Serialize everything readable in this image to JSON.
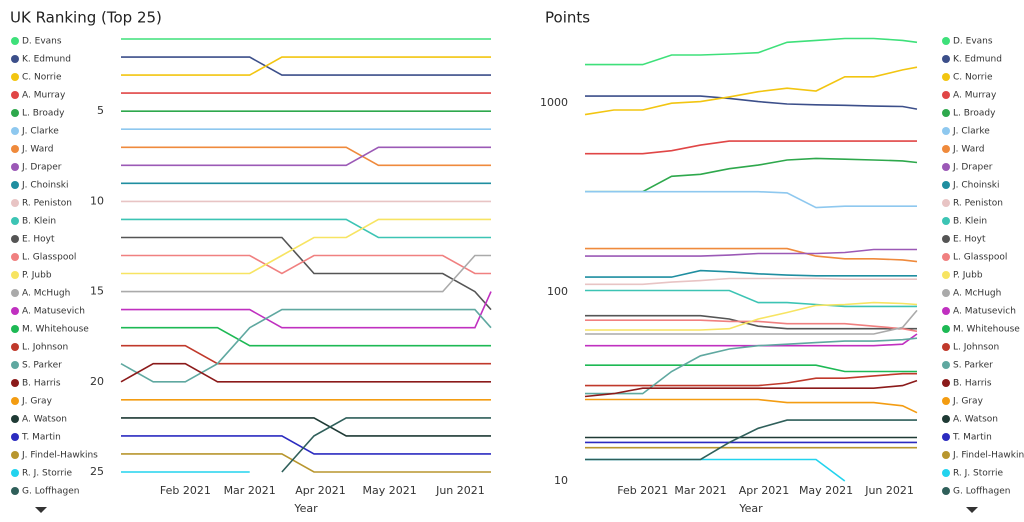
{
  "chart_data": [
    {
      "type": "line",
      "title": "UK Ranking (Top 25)",
      "x_label": "Year",
      "legend": "left",
      "log": false,
      "grid": false,
      "x": [
        0,
        2,
        4,
        6,
        8,
        10,
        12,
        14,
        16,
        18,
        20,
        22,
        23
      ],
      "xlim": [
        0,
        23
      ],
      "xticks": [
        {
          "value": 4,
          "label": "Feb 2021"
        },
        {
          "value": 8,
          "label": "Mar 2021"
        },
        {
          "value": 12.4,
          "label": "Apr 2021"
        },
        {
          "value": 16.7,
          "label": "May 2021"
        },
        {
          "value": 21.1,
          "label": "Jun 2021"
        }
      ],
      "ylim": [
        25.5,
        0.5
      ],
      "yticks": [
        5,
        10,
        15,
        20,
        25
      ],
      "series": [
        {
          "name": "D. Evans",
          "color": "#3ee07a",
          "values": [
            1,
            1,
            1,
            1,
            1,
            1,
            1,
            1,
            1,
            1,
            1,
            1,
            1
          ]
        },
        {
          "name": "K. Edmund",
          "color": "#3c4f8a",
          "values": [
            2,
            2,
            2,
            2,
            2,
            3,
            3,
            3,
            3,
            3,
            3,
            3,
            3
          ]
        },
        {
          "name": "C. Norrie",
          "color": "#f2c511",
          "values": [
            3,
            3,
            3,
            3,
            3,
            2,
            2,
            2,
            2,
            2,
            2,
            2,
            2
          ]
        },
        {
          "name": "A. Murray",
          "color": "#e04646",
          "values": [
            4,
            4,
            4,
            4,
            4,
            4,
            4,
            4,
            4,
            4,
            4,
            4,
            4
          ]
        },
        {
          "name": "L. Broady",
          "color": "#2ea84c",
          "values": [
            5,
            5,
            5,
            5,
            5,
            5,
            5,
            5,
            5,
            5,
            5,
            5,
            5
          ]
        },
        {
          "name": "J. Clarke",
          "color": "#8ec8ef",
          "values": [
            6,
            6,
            6,
            6,
            6,
            6,
            6,
            6,
            6,
            6,
            6,
            6,
            6
          ]
        },
        {
          "name": "J. Ward",
          "color": "#ef8a3c",
          "values": [
            7,
            7,
            7,
            7,
            7,
            7,
            7,
            7,
            8,
            8,
            8,
            8,
            8
          ]
        },
        {
          "name": "J. Draper",
          "color": "#9b59b6",
          "values": [
            8,
            8,
            8,
            8,
            8,
            8,
            8,
            8,
            7,
            7,
            7,
            7,
            7
          ]
        },
        {
          "name": "J. Choinski",
          "color": "#1f8ea0",
          "values": [
            9,
            9,
            9,
            9,
            9,
            9,
            9,
            9,
            9,
            9,
            9,
            9,
            9
          ]
        },
        {
          "name": "R. Peniston",
          "color": "#e8c4c4",
          "values": [
            10,
            10,
            10,
            10,
            10,
            10,
            10,
            10,
            10,
            10,
            10,
            10,
            10
          ]
        },
        {
          "name": "B. Klein",
          "color": "#3cc4b4",
          "values": [
            11,
            11,
            11,
            11,
            11,
            11,
            11,
            11,
            12,
            12,
            12,
            12,
            12
          ]
        },
        {
          "name": "E. Hoyt",
          "color": "#555555",
          "values": [
            12,
            12,
            12,
            12,
            12,
            12,
            14,
            14,
            14,
            14,
            14,
            15,
            16
          ]
        },
        {
          "name": "L. Glasspool",
          "color": "#f08080",
          "values": [
            13,
            13,
            13,
            13,
            13,
            14,
            13,
            13,
            13,
            13,
            13,
            14,
            14
          ]
        },
        {
          "name": "P. Jubb",
          "color": "#f7e462",
          "values": [
            14,
            14,
            14,
            14,
            14,
            13,
            12,
            12,
            11,
            11,
            11,
            11,
            11
          ]
        },
        {
          "name": "A. McHugh",
          "color": "#aaaaaa",
          "values": [
            15,
            15,
            15,
            15,
            15,
            15,
            15,
            15,
            15,
            15,
            15,
            13,
            13
          ]
        },
        {
          "name": "A. Matusevich",
          "color": "#c030c0",
          "values": [
            16,
            16,
            16,
            16,
            16,
            17,
            17,
            17,
            17,
            17,
            17,
            17,
            15
          ]
        },
        {
          "name": "M. Whitehouse",
          "color": "#1db954",
          "values": [
            17,
            17,
            17,
            17,
            18,
            18,
            18,
            18,
            18,
            18,
            18,
            18,
            18
          ]
        },
        {
          "name": "L. Johnson",
          "color": "#c0392b",
          "values": [
            18,
            18,
            18,
            19,
            19,
            19,
            19,
            19,
            19,
            19,
            19,
            19,
            19
          ]
        },
        {
          "name": "S. Parker",
          "color": "#5fa8a0",
          "values": [
            19,
            20,
            20,
            19,
            17,
            16,
            16,
            16,
            16,
            16,
            16,
            16,
            17
          ]
        },
        {
          "name": "B. Harris",
          "color": "#8b1a1a",
          "values": [
            20,
            19,
            19,
            20,
            20,
            20,
            20,
            20,
            20,
            20,
            20,
            20,
            20
          ]
        },
        {
          "name": "J. Gray",
          "color": "#f39c12",
          "values": [
            21,
            21,
            21,
            21,
            21,
            21,
            21,
            21,
            21,
            21,
            21,
            21,
            21
          ]
        },
        {
          "name": "A. Watson",
          "color": "#1f3a35",
          "values": [
            22,
            22,
            22,
            22,
            22,
            22,
            22,
            23,
            23,
            23,
            23,
            23,
            23
          ]
        },
        {
          "name": "T. Martin",
          "color": "#2c2cc0",
          "values": [
            23,
            23,
            23,
            23,
            23,
            23,
            24,
            24,
            24,
            24,
            24,
            24,
            24
          ]
        },
        {
          "name": "J. Findel-Hawkins",
          "color": "#b8962e",
          "values": [
            24,
            24,
            24,
            24,
            24,
            24,
            25,
            25,
            25,
            25,
            25,
            25,
            25
          ]
        },
        {
          "name": "R. J. Storrie",
          "color": "#22d3ee",
          "values": [
            25,
            25,
            25,
            25,
            25,
            null,
            null,
            null,
            null,
            null,
            null,
            null,
            null
          ]
        },
        {
          "name": "G. Loffhagen",
          "color": "#2f5f5a",
          "values": [
            null,
            null,
            null,
            null,
            null,
            25,
            23,
            22,
            22,
            22,
            22,
            22,
            22
          ]
        }
      ]
    },
    {
      "type": "line",
      "title": "Points",
      "x_label": "Year",
      "legend": "right",
      "log": true,
      "grid": false,
      "x": [
        0,
        2,
        4,
        6,
        8,
        10,
        12,
        14,
        16,
        18,
        20,
        22,
        23
      ],
      "xlim": [
        0,
        23
      ],
      "xticks": [
        {
          "value": 4,
          "label": "Feb 2021"
        },
        {
          "value": 8,
          "label": "Mar 2021"
        },
        {
          "value": 12.4,
          "label": "Apr 2021"
        },
        {
          "value": 16.7,
          "label": "May 2021"
        },
        {
          "value": 21.1,
          "label": "Jun 2021"
        }
      ],
      "ylim": [
        10,
        2500
      ],
      "yticks": [
        10,
        100,
        1000
      ],
      "series": [
        {
          "name": "D. Evans",
          "color": "#3ee07a",
          "values": [
            1600,
            1600,
            1600,
            1800,
            1800,
            1820,
            1850,
            2100,
            2150,
            2200,
            2200,
            2150,
            2100
          ]
        },
        {
          "name": "K. Edmund",
          "color": "#3c4f8a",
          "values": [
            1090,
            1090,
            1090,
            1090,
            1090,
            1060,
            1020,
            990,
            980,
            975,
            965,
            960,
            930
          ]
        },
        {
          "name": "C. Norrie",
          "color": "#f2c511",
          "values": [
            870,
            920,
            920,
            1000,
            1020,
            1080,
            1150,
            1200,
            1160,
            1380,
            1380,
            1500,
            1550
          ]
        },
        {
          "name": "A. Murray",
          "color": "#e04646",
          "values": [
            540,
            540,
            540,
            560,
            600,
            630,
            630,
            630,
            630,
            630,
            630,
            630,
            630
          ]
        },
        {
          "name": "L. Broady",
          "color": "#2ea84c",
          "values": [
            340,
            340,
            340,
            410,
            420,
            450,
            470,
            500,
            510,
            505,
            500,
            495,
            485
          ]
        },
        {
          "name": "J. Clarke",
          "color": "#8ec8ef",
          "values": [
            340,
            340,
            340,
            340,
            340,
            340,
            340,
            335,
            280,
            285,
            285,
            285,
            285
          ]
        },
        {
          "name": "J. Ward",
          "color": "#ef8a3c",
          "values": [
            170,
            170,
            170,
            170,
            170,
            170,
            170,
            170,
            155,
            150,
            150,
            148,
            145
          ]
        },
        {
          "name": "J. Draper",
          "color": "#9b59b6",
          "values": [
            155,
            155,
            155,
            155,
            155,
            157,
            160,
            160,
            160,
            162,
            168,
            168,
            168
          ]
        },
        {
          "name": "J. Choinski",
          "color": "#1f8ea0",
          "values": [
            120,
            120,
            120,
            120,
            130,
            128,
            125,
            123,
            122,
            122,
            122,
            122,
            122
          ]
        },
        {
          "name": "R. Peniston",
          "color": "#e8c4c4",
          "values": [
            110,
            110,
            110,
            113,
            115,
            118,
            118,
            118,
            118,
            117,
            117,
            117,
            117
          ]
        },
        {
          "name": "B. Klein",
          "color": "#3cc4b4",
          "values": [
            102,
            102,
            102,
            102,
            102,
            102,
            88,
            88,
            86,
            84,
            84,
            84,
            84
          ]
        },
        {
          "name": "E. Hoyt",
          "color": "#555555",
          "values": [
            75,
            75,
            75,
            75,
            75,
            72,
            66,
            64,
            64,
            64,
            64,
            64,
            64
          ]
        },
        {
          "name": "L. Glasspool",
          "color": "#f08080",
          "values": [
            71,
            71,
            71,
            71,
            71,
            70,
            70,
            68,
            68,
            68,
            66,
            64,
            62
          ]
        },
        {
          "name": "P. Jubb",
          "color": "#f7e462",
          "values": [
            63,
            63,
            63,
            63,
            63,
            64,
            72,
            78,
            85,
            86,
            88,
            87,
            86
          ]
        },
        {
          "name": "A. McHugh",
          "color": "#aaaaaa",
          "values": [
            60,
            60,
            60,
            60,
            60,
            60,
            60,
            60,
            60,
            60,
            60,
            65,
            80
          ]
        },
        {
          "name": "A. Matusevich",
          "color": "#c030c0",
          "values": [
            52,
            52,
            52,
            52,
            52,
            52,
            52,
            52,
            52,
            52,
            52,
            53,
            60
          ]
        },
        {
          "name": "M. Whitehouse",
          "color": "#1db954",
          "values": [
            41,
            41,
            41,
            41,
            41,
            41,
            41,
            41,
            41,
            38,
            38,
            38,
            38
          ]
        },
        {
          "name": "L. Johnson",
          "color": "#c0392b",
          "values": [
            32,
            32,
            32,
            32,
            32,
            32,
            32,
            33,
            35,
            35,
            36,
            37,
            37
          ]
        },
        {
          "name": "S. Parker",
          "color": "#5fa8a0",
          "values": [
            29,
            29,
            29,
            38,
            46,
            50,
            52,
            53,
            54,
            55,
            55,
            56,
            57
          ]
        },
        {
          "name": "B. Harris",
          "color": "#8b1a1a",
          "values": [
            28,
            29,
            31,
            31,
            31,
            31,
            31,
            31,
            31,
            31,
            31,
            32,
            34
          ]
        },
        {
          "name": "J. Gray",
          "color": "#f39c12",
          "values": [
            27,
            27,
            27,
            27,
            27,
            27,
            27,
            26,
            26,
            26,
            26,
            25,
            23
          ]
        },
        {
          "name": "A. Watson",
          "color": "#1f3a35",
          "values": [
            17,
            17,
            17,
            17,
            17,
            17,
            17,
            17,
            17,
            17,
            17,
            17,
            17
          ]
        },
        {
          "name": "T. Martin",
          "color": "#2c2cc0",
          "values": [
            16,
            16,
            16,
            16,
            16,
            16,
            16,
            16,
            16,
            16,
            16,
            16,
            16
          ]
        },
        {
          "name": "J. Findel-Hawkins",
          "color": "#b8962e",
          "values": [
            15,
            15,
            15,
            15,
            15,
            15,
            15,
            15,
            15,
            15,
            15,
            15,
            15
          ]
        },
        {
          "name": "R. J. Storrie",
          "color": "#22d3ee",
          "values": [
            13,
            13,
            13,
            13,
            13,
            13,
            13,
            13,
            13,
            10,
            null,
            null,
            null
          ]
        },
        {
          "name": "G. Loffhagen",
          "color": "#2f5f5a",
          "values": [
            13,
            13,
            13,
            13,
            13,
            16,
            19,
            21,
            21,
            21,
            21,
            21,
            21
          ]
        }
      ]
    }
  ]
}
